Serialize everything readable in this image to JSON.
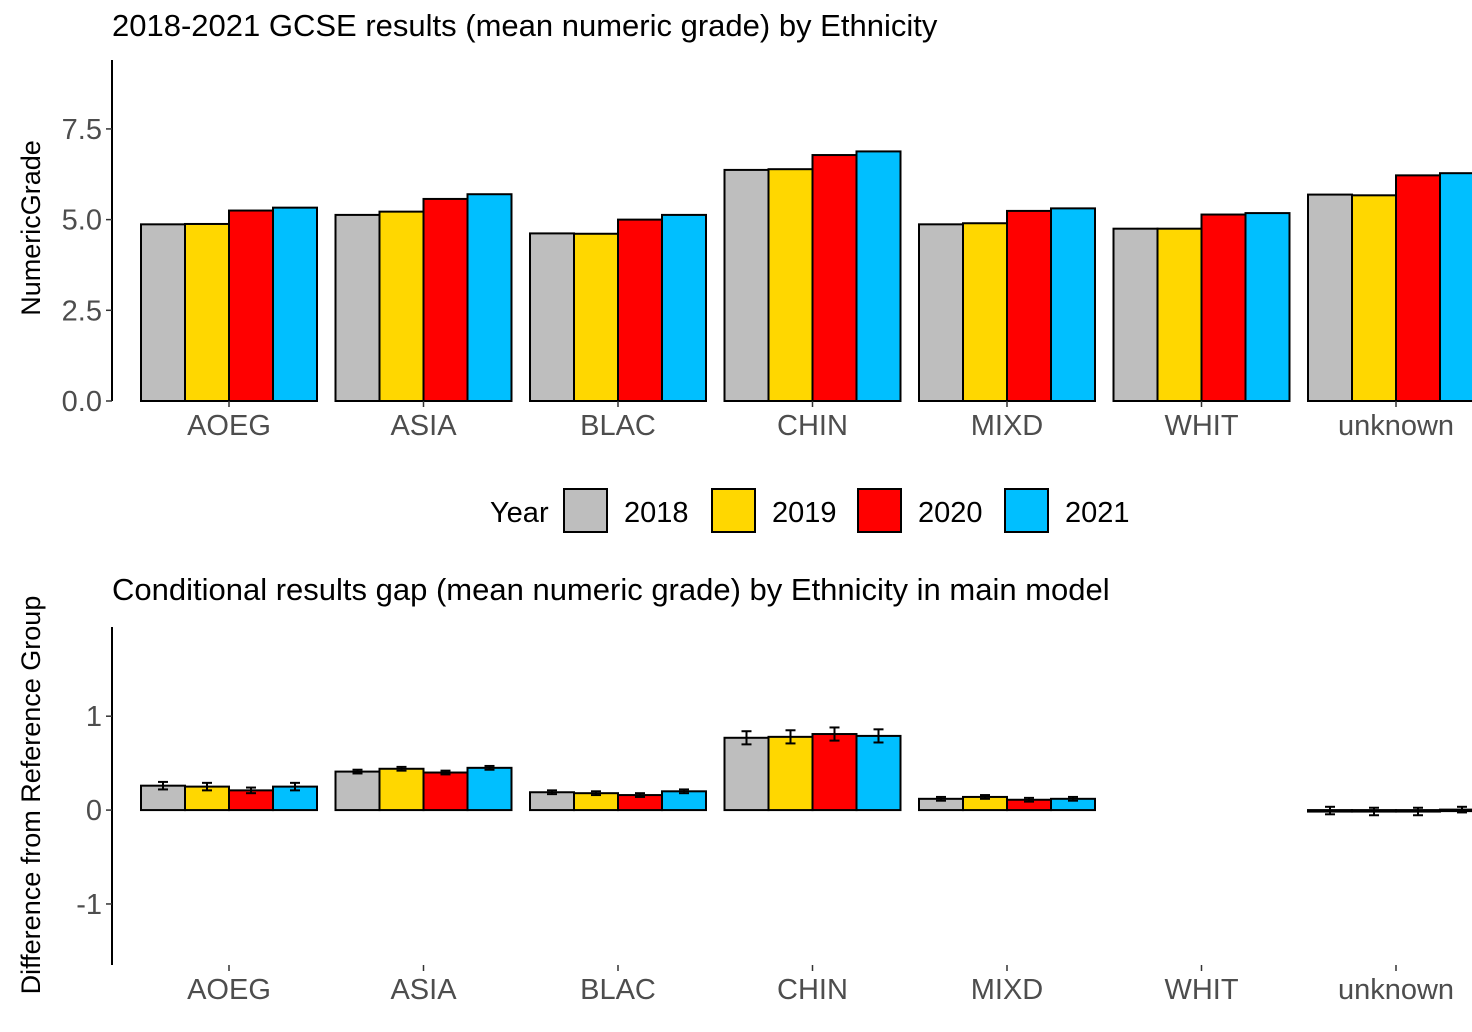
{
  "colors": {
    "2018": "#bebebe",
    "2019": "#ffd700",
    "2020": "#ff0000",
    "2021": "#00bfff",
    "outline": "#000000"
  },
  "legend": {
    "title": "Year",
    "entries": [
      "2018",
      "2019",
      "2020",
      "2021"
    ],
    "placement": "between-panels"
  },
  "chart_data": [
    {
      "type": "bar",
      "title": "2018-2021 GCSE results (mean numeric grade) by Ethnicity",
      "xlabel": "",
      "ylabel": "NumericGrade",
      "ylim": [
        0,
        9.4
      ],
      "yticks": [
        "0.0",
        "2.5",
        "5.0",
        "7.5"
      ],
      "grid": false,
      "categories": [
        "AOEG",
        "ASIA",
        "BLAC",
        "CHIN",
        "MIXD",
        "WHIT",
        "unknown"
      ],
      "series": [
        {
          "name": "2018",
          "values": [
            4.87,
            5.13,
            4.62,
            6.37,
            4.87,
            4.75,
            5.69
          ]
        },
        {
          "name": "2019",
          "values": [
            4.88,
            5.22,
            4.61,
            6.39,
            4.9,
            4.75,
            5.67
          ]
        },
        {
          "name": "2020",
          "values": [
            5.25,
            5.57,
            5.0,
            6.78,
            5.24,
            5.14,
            6.22
          ]
        },
        {
          "name": "2021",
          "values": [
            5.33,
            5.7,
            5.13,
            6.88,
            5.31,
            5.18,
            6.28
          ]
        }
      ]
    },
    {
      "type": "bar",
      "title": "Conditional results gap (mean numeric grade) by Ethnicity in main model",
      "xlabel": "",
      "ylabel": "Difference from Reference Group",
      "ylim": [
        -1.65,
        1.95
      ],
      "yticks": [
        "-1",
        "0",
        "1"
      ],
      "grid": false,
      "error_bars": true,
      "categories": [
        "AOEG",
        "ASIA",
        "BLAC",
        "CHIN",
        "MIXD",
        "WHIT",
        "unknown"
      ],
      "series": [
        {
          "name": "2018",
          "values": [
            0.26,
            0.41,
            0.19,
            0.77,
            0.12,
            null,
            -0.005
          ],
          "errors": [
            0.04,
            0.02,
            0.02,
            0.07,
            0.02,
            null,
            0.04
          ]
        },
        {
          "name": "2019",
          "values": [
            0.25,
            0.44,
            0.18,
            0.78,
            0.14,
            null,
            -0.015
          ],
          "errors": [
            0.04,
            0.02,
            0.02,
            0.07,
            0.02,
            null,
            0.04
          ]
        },
        {
          "name": "2020",
          "values": [
            0.21,
            0.4,
            0.16,
            0.81,
            0.11,
            null,
            -0.015
          ],
          "errors": [
            0.03,
            0.02,
            0.02,
            0.07,
            0.02,
            null,
            0.04
          ]
        },
        {
          "name": "2021",
          "values": [
            0.25,
            0.45,
            0.2,
            0.79,
            0.12,
            null,
            0.005
          ],
          "errors": [
            0.04,
            0.02,
            0.02,
            0.07,
            0.02,
            null,
            0.03
          ]
        }
      ]
    }
  ]
}
